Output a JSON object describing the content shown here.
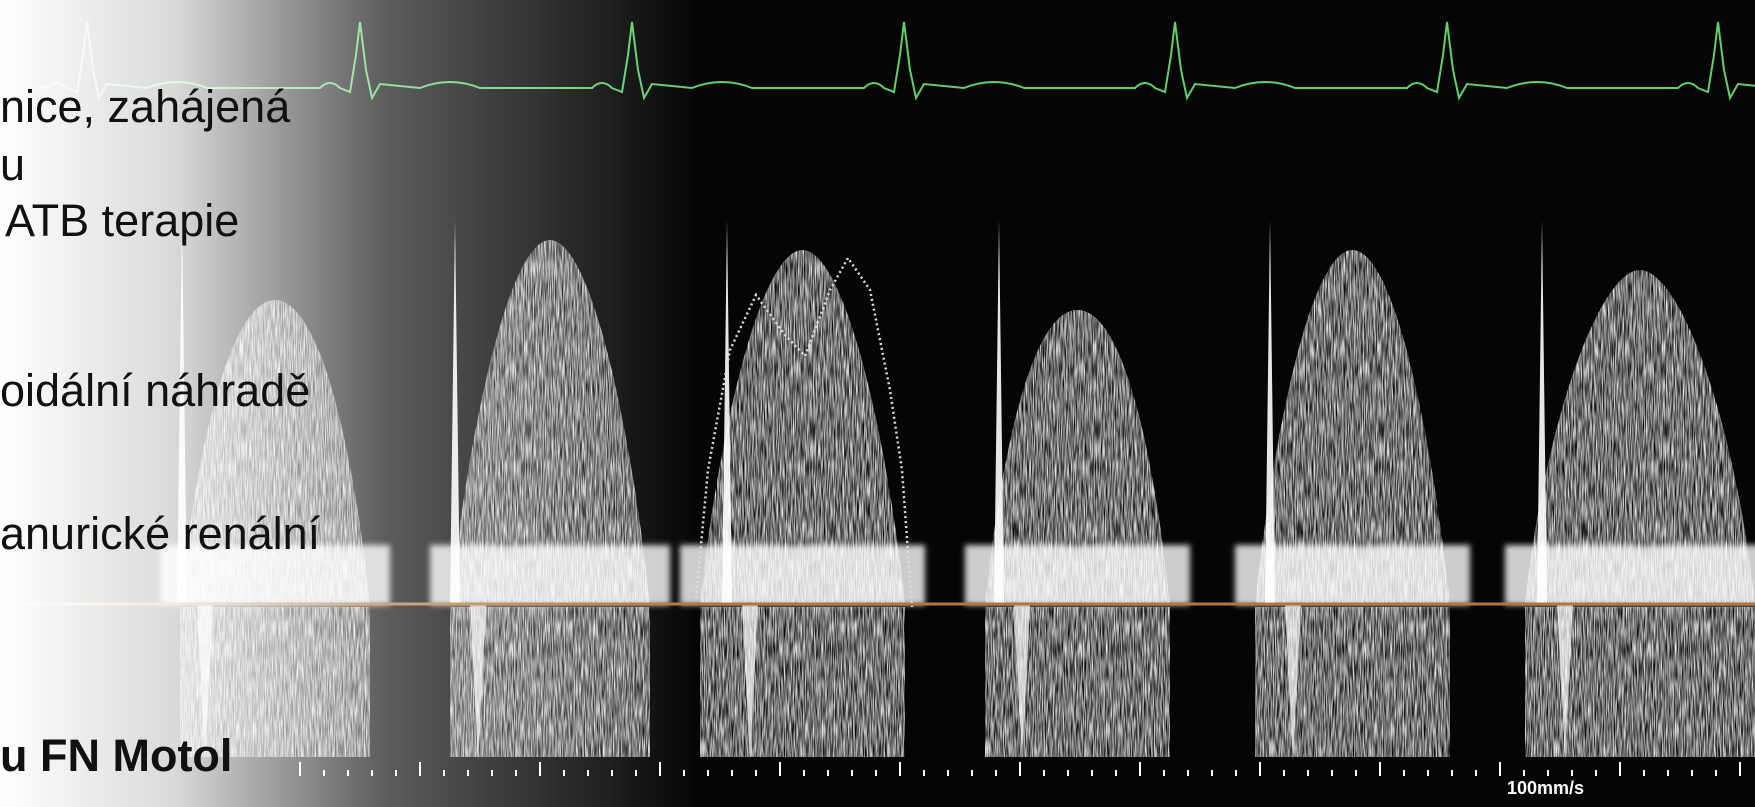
{
  "slide": {
    "lines": [
      "nice, zahájená",
      "u",
      "ATB terapie",
      "oidální náhradě",
      "anurické renální"
    ],
    "footer": "u FN Motol"
  },
  "scan": {
    "speed_label": "100mm/s"
  }
}
